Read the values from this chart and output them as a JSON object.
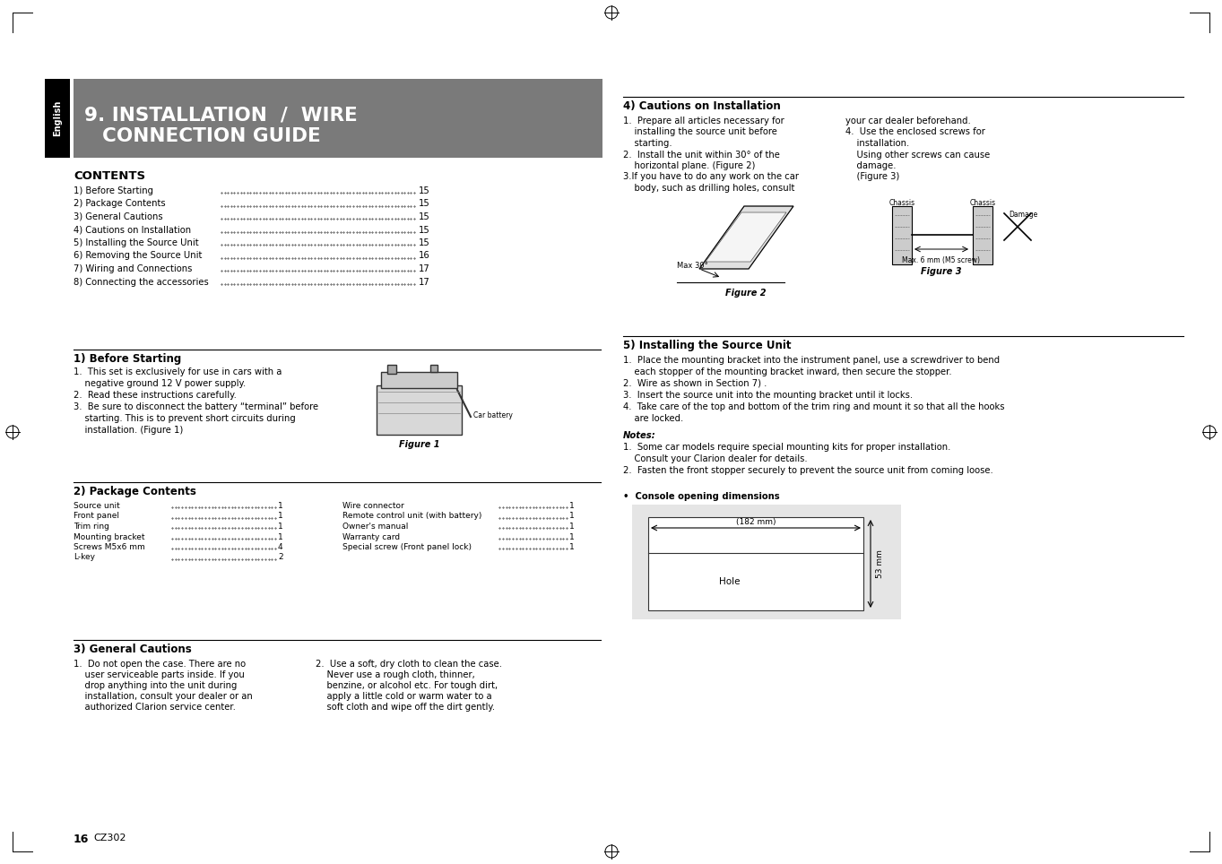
{
  "page_bg": "#ffffff",
  "header_bg": "#7a7a7a",
  "header_text_color": "#ffffff",
  "english_tab_bg": "#000000",
  "english_tab_text": "English",
  "english_tab_text_color": "#ffffff",
  "contents_title": "CONTENTS",
  "contents_items": [
    [
      "1) Before Starting ",
      "15"
    ],
    [
      "2) Package Contents",
      "15"
    ],
    [
      "3) General Cautions ",
      "15"
    ],
    [
      "4) Cautions on Installation",
      "15"
    ],
    [
      "5) Installing the Source Unit ",
      "15"
    ],
    [
      "6) Removing the Source Unit ",
      "16"
    ],
    [
      "7) Wiring and Connections ",
      "17"
    ],
    [
      "8) Connecting the accessories",
      "17"
    ]
  ],
  "section1_title": "1) Before Starting",
  "section1_text": [
    "1.  This set is exclusively for use in cars with a",
    "    negative ground 12 V power supply.",
    "2.  Read these instructions carefully.",
    "3.  Be sure to disconnect the battery “terminal” before",
    "    starting. This is to prevent short circuits during",
    "    installation. (Figure 1)"
  ],
  "figure1_label": "Figure 1",
  "figure1_sublabel": "Car battery",
  "section2_title": "2) Package Contents",
  "package_left": [
    [
      "Source unit ",
      "1"
    ],
    [
      "Front panel ",
      "1"
    ],
    [
      "Trim ring ",
      "1"
    ],
    [
      "Mounting bracket",
      "1"
    ],
    [
      "Screws M5x6 mm",
      "4"
    ],
    [
      "L-key",
      "2"
    ]
  ],
  "package_right": [
    [
      "Wire connector ",
      "1"
    ],
    [
      "Remote control unit (with battery)",
      "1"
    ],
    [
      "Owner's manual",
      "1"
    ],
    [
      "Warranty card",
      "1"
    ],
    [
      "Special screw (Front panel lock) ",
      "1"
    ]
  ],
  "section3_title": "3) General Cautions",
  "section3_col1": [
    "1.  Do not open the case. There are no",
    "    user serviceable parts inside. If you",
    "    drop anything into the unit during",
    "    installation, consult your dealer or an",
    "    authorized Clarion service center."
  ],
  "section3_col2": [
    "2.  Use a soft, dry cloth to clean the case.",
    "    Never use a rough cloth, thinner,",
    "    benzine, or alcohol etc. For tough dirt,",
    "    apply a little cold or warm water to a",
    "    soft cloth and wipe off the dirt gently."
  ],
  "section4_title": "4) Cautions on Installation",
  "section4_col1": [
    "1.  Prepare all articles necessary for",
    "    installing the source unit before",
    "    starting.",
    "2.  Install the unit within 30° of the",
    "    horizontal plane. (Figure 2)",
    "3.If you have to do any work on the car",
    "    body, such as drilling holes, consult"
  ],
  "section4_col2": [
    "your car dealer beforehand.",
    "4.  Use the enclosed screws for",
    "    installation.",
    "    Using other screws can cause",
    "    damage.",
    "    (Figure 3)"
  ],
  "figure2_label": "Figure 2",
  "figure3_label": "Figure 3",
  "section5_title": "5) Installing the Source Unit",
  "section5_text": [
    "1.  Place the mounting bracket into the instrument panel, use a screwdriver to bend",
    "    each stopper of the mounting bracket inward, then secure the stopper.",
    "2.  Wire as shown in Section 7) .",
    "3.  Insert the source unit into the mounting bracket until it locks.",
    "4.  Take care of the top and bottom of the trim ring and mount it so that all the hooks",
    "    are locked."
  ],
  "notes_title": "Notes:",
  "notes_text": [
    "1.  Some car models require special mounting kits for proper installation.",
    "    Consult your Clarion dealer for details.",
    "2.  Fasten the front stopper securely to prevent the source unit from coming loose."
  ],
  "console_title": "•  Console opening dimensions",
  "page_number": "16",
  "page_code": "CZ302",
  "body_fontsize": 7.2,
  "small_fontsize": 6.5,
  "section_title_fontsize": 8.5,
  "header_line1": "9. INSTALLATION  /  WIRE",
  "header_line2": "   CONNECTION GUIDE"
}
